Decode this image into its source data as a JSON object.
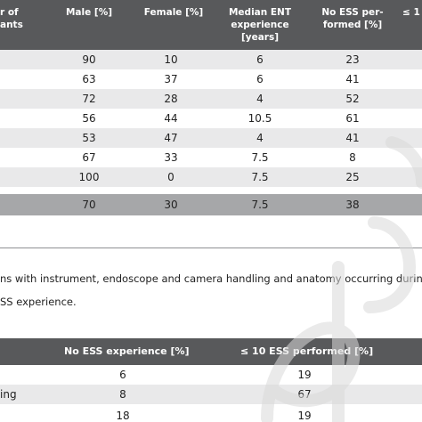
{
  "table1": {
    "headers": {
      "col0": [
        "r of",
        "ants"
      ],
      "male": [
        "Male [%]"
      ],
      "female": [
        "Female [%]"
      ],
      "median_ent": [
        "Median ENT",
        "experience",
        "[years]"
      ],
      "no_ess": [
        "No ESS per-",
        "formed [%]"
      ],
      "cut": [
        "≤ 1"
      ]
    },
    "rows": [
      {
        "male": "90",
        "female": "10",
        "median": "6",
        "no_ess": "23"
      },
      {
        "male": "63",
        "female": "37",
        "median": "6",
        "no_ess": "41"
      },
      {
        "male": "72",
        "female": "28",
        "median": "4",
        "no_ess": "52"
      },
      {
        "male": "56",
        "female": "44",
        "median": "10.5",
        "no_ess": "61"
      },
      {
        "male": "53",
        "female": "47",
        "median": "4",
        "no_ess": "41"
      },
      {
        "male": "67",
        "female": "33",
        "median": "7.5",
        "no_ess": "8"
      },
      {
        "male": "100",
        "female": "0",
        "median": "7.5",
        "no_ess": "25"
      }
    ],
    "total": {
      "male": "70",
      "female": "30",
      "median": "7.5",
      "no_ess": "38"
    }
  },
  "caption": {
    "line1": "ns with instrument, endoscope and camera handling and anatomy occurring during d",
    "line2": "SS experience."
  },
  "table2": {
    "headers": {
      "no_ess_exp": "No ESS experience [%]",
      "le10": "≤ 10 ESS performed [%]"
    },
    "rows": [
      {
        "label": "",
        "no_ess_exp": "6",
        "le10": "19"
      },
      {
        "label": "ing",
        "no_ess_exp": "8",
        "le10": "67"
      },
      {
        "label": "",
        "no_ess_exp": "18",
        "le10": "19"
      }
    ]
  }
}
